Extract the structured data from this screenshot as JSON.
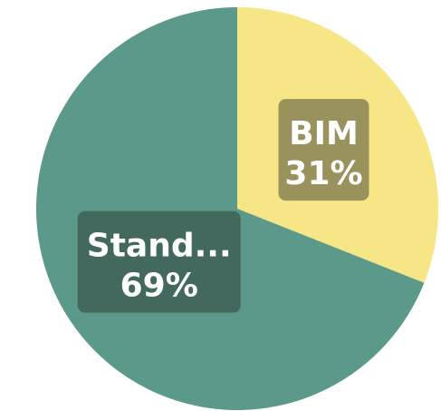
{
  "chart_data": {
    "type": "pie",
    "slices": [
      {
        "label": "BIM",
        "value": 31,
        "value_label": "31%",
        "color": "#f7e685",
        "label_bg": "#8a8256"
      },
      {
        "label": "Stand...",
        "value": 69,
        "value_label": "69%",
        "color": "#5b998a",
        "label_bg": "#3f5f56"
      }
    ],
    "start_angle": "top",
    "direction": "clockwise",
    "legend": "none"
  }
}
